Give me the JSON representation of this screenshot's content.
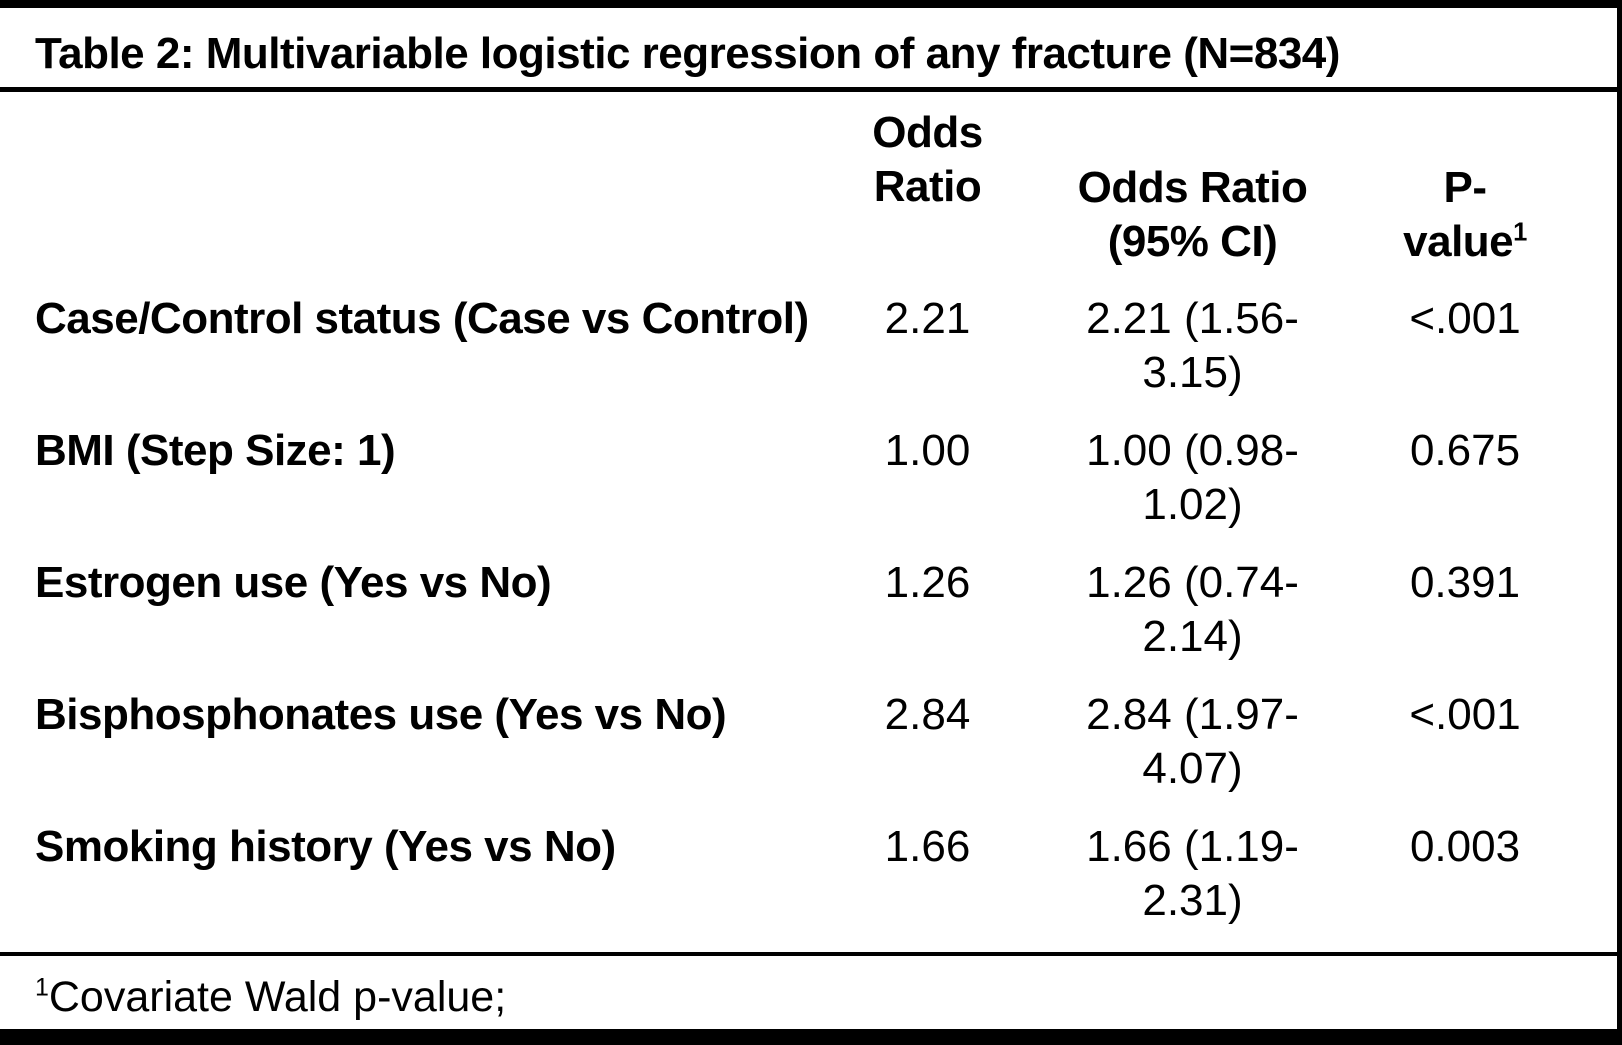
{
  "title": "Table 2: Multivariable logistic regression of any fracture (N=834)",
  "columns": {
    "variable": "",
    "odds_ratio": "Odds Ratio",
    "odds_ratio_ci": "Odds Ratio (95% CI)",
    "p_value": "P-value",
    "p_value_sup": "1"
  },
  "rows": [
    {
      "variable": "Case/Control status (Case vs Control)",
      "odds_ratio": "2.21",
      "ci": "2.21 (1.56-3.15)",
      "p": "<.001"
    },
    {
      "variable": "BMI (Step Size: 1)",
      "odds_ratio": "1.00",
      "ci": "1.00 (0.98-1.02)",
      "p": "0.675"
    },
    {
      "variable": "Estrogen use (Yes vs No)",
      "odds_ratio": "1.26",
      "ci": "1.26 (0.74-2.14)",
      "p": "0.391"
    },
    {
      "variable": "Bisphosphonates use (Yes vs No)",
      "odds_ratio": "2.84",
      "ci": "2.84 (1.97-4.07)",
      "p": "<.001"
    },
    {
      "variable": "Smoking history (Yes vs No)",
      "odds_ratio": "1.66",
      "ci": "1.66 (1.19-2.31)",
      "p": "0.003"
    }
  ],
  "footnote": {
    "sup": "1",
    "text": "Covariate Wald p-value;"
  },
  "colors": {
    "text": "#000000",
    "background": "#ffffff",
    "border": "#000000"
  }
}
